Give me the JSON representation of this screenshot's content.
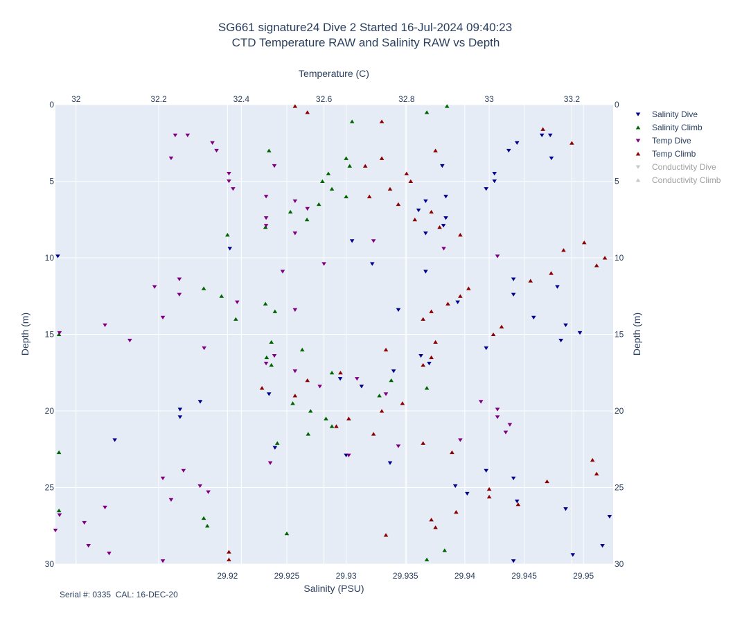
{
  "chart_data": {
    "type": "scatter",
    "title": "SG661 signature24 Dive 2 Started 16-Jul-2024 09:40:23",
    "subtitle": "CTD Temperature RAW and Salinity RAW vs Depth",
    "xlabel_bottom": "Salinity (PSU)",
    "xlabel_top": "Temperature (C)",
    "ylabel": "Depth (m)",
    "x_bottom_range": [
      29.9055,
      29.9525
    ],
    "x_bottom_ticks": [
      "29.92",
      "29.925",
      "29.93",
      "29.935",
      "29.94",
      "29.945",
      "29.95"
    ],
    "x_top_range": [
      31.95,
      33.3
    ],
    "x_top_ticks": [
      "32",
      "32.2",
      "32.4",
      "32.6",
      "32.8",
      "33",
      "33.2"
    ],
    "y_range": [
      0,
      30
    ],
    "y_reversed": true,
    "y_ticks": [
      "0",
      "5",
      "10",
      "15",
      "20",
      "25",
      "30"
    ],
    "grid": true,
    "legend_position": "right",
    "footer": "Serial #: 0335  CAL: 16-DEC-20",
    "series": [
      {
        "name": "Salinity Dive",
        "axis": "salinity",
        "marker": "triangle-down",
        "color": "#00008b",
        "visible": true,
        "points": [
          [
            29.9472,
            2.0
          ],
          [
            29.9465,
            2.0
          ],
          [
            29.9444,
            2.5
          ],
          [
            29.9437,
            3.0
          ],
          [
            29.9473,
            3.5
          ],
          [
            29.9381,
            4.0
          ],
          [
            29.9425,
            4.5
          ],
          [
            29.9425,
            5.0
          ],
          [
            29.9418,
            5.5
          ],
          [
            29.9384,
            6.0
          ],
          [
            29.9367,
            6.3
          ],
          [
            29.9361,
            6.9
          ],
          [
            29.9384,
            7.4
          ],
          [
            29.9382,
            7.9
          ],
          [
            29.9367,
            8.4
          ],
          [
            29.9057,
            9.9
          ],
          [
            29.9202,
            9.4
          ],
          [
            29.9305,
            8.9
          ],
          [
            29.9322,
            10.4
          ],
          [
            29.9367,
            10.9
          ],
          [
            29.9441,
            11.4
          ],
          [
            29.9478,
            11.9
          ],
          [
            29.9441,
            12.4
          ],
          [
            29.9394,
            12.9
          ],
          [
            29.9344,
            13.4
          ],
          [
            29.9458,
            13.9
          ],
          [
            29.9485,
            14.4
          ],
          [
            29.9497,
            14.9
          ],
          [
            29.9481,
            15.4
          ],
          [
            29.9418,
            15.9
          ],
          [
            29.9363,
            16.4
          ],
          [
            29.937,
            16.9
          ],
          [
            29.934,
            17.4
          ],
          [
            29.9295,
            17.9
          ],
          [
            29.9313,
            18.4
          ],
          [
            29.9235,
            18.9
          ],
          [
            29.9177,
            19.4
          ],
          [
            29.916,
            19.9
          ],
          [
            29.916,
            20.4
          ],
          [
            29.9105,
            21.9
          ],
          [
            29.924,
            22.4
          ],
          [
            29.93,
            22.9
          ],
          [
            29.9337,
            23.4
          ],
          [
            29.9418,
            23.9
          ],
          [
            29.9441,
            24.4
          ],
          [
            29.9392,
            24.9
          ],
          [
            29.9402,
            25.4
          ],
          [
            29.9444,
            25.9
          ],
          [
            29.9485,
            26.4
          ],
          [
            29.9522,
            26.9
          ],
          [
            29.9491,
            29.4
          ],
          [
            29.9516,
            28.8
          ],
          [
            29.9441,
            29.8
          ]
        ]
      },
      {
        "name": "Salinity Climb",
        "axis": "salinity",
        "marker": "triangle-up",
        "color": "#006400",
        "visible": true,
        "points": [
          [
            29.9368,
            0.5
          ],
          [
            29.9385,
            0.1
          ],
          [
            29.9305,
            1.1
          ],
          [
            29.9235,
            3.0
          ],
          [
            29.93,
            3.5
          ],
          [
            29.9303,
            4.0
          ],
          [
            29.9285,
            4.5
          ],
          [
            29.928,
            5.0
          ],
          [
            29.9288,
            5.5
          ],
          [
            29.93,
            6.0
          ],
          [
            29.9277,
            6.5
          ],
          [
            29.9253,
            7.0
          ],
          [
            29.9267,
            7.5
          ],
          [
            29.9232,
            8.0
          ],
          [
            29.92,
            8.5
          ],
          [
            29.918,
            12.0
          ],
          [
            29.9195,
            12.5
          ],
          [
            29.9232,
            13.0
          ],
          [
            29.924,
            13.5
          ],
          [
            29.9207,
            14.0
          ],
          [
            29.9058,
            15.0
          ],
          [
            29.9237,
            15.5
          ],
          [
            29.9263,
            16.0
          ],
          [
            29.9233,
            16.5
          ],
          [
            29.9237,
            17.0
          ],
          [
            29.9288,
            17.5
          ],
          [
            29.9338,
            18.0
          ],
          [
            29.9368,
            18.5
          ],
          [
            29.9328,
            19.0
          ],
          [
            29.9255,
            19.5
          ],
          [
            29.927,
            20.0
          ],
          [
            29.9283,
            20.5
          ],
          [
            29.9288,
            21.0
          ],
          [
            29.9268,
            21.5
          ],
          [
            29.9242,
            22.1
          ],
          [
            29.9058,
            22.7
          ],
          [
            29.9058,
            26.5
          ],
          [
            29.918,
            27.0
          ],
          [
            29.9183,
            27.5
          ],
          [
            29.925,
            28.0
          ],
          [
            29.9383,
            29.1
          ],
          [
            29.9368,
            29.7
          ]
        ]
      },
      {
        "name": "Temp Dive",
        "axis": "temperature",
        "marker": "triangle-down",
        "color": "#800080",
        "visible": true,
        "points": [
          [
            32.24,
            2.0
          ],
          [
            32.27,
            2.0
          ],
          [
            32.33,
            2.5
          ],
          [
            32.34,
            3.0
          ],
          [
            32.23,
            3.5
          ],
          [
            32.48,
            4.0
          ],
          [
            32.37,
            4.5
          ],
          [
            32.37,
            5.0
          ],
          [
            32.38,
            5.5
          ],
          [
            32.46,
            6.0
          ],
          [
            32.53,
            6.3
          ],
          [
            32.56,
            6.8
          ],
          [
            32.46,
            7.4
          ],
          [
            32.46,
            7.9
          ],
          [
            32.53,
            8.4
          ],
          [
            32.72,
            8.9
          ],
          [
            32.89,
            9.4
          ],
          [
            33.02,
            9.9
          ],
          [
            32.6,
            10.4
          ],
          [
            32.5,
            10.9
          ],
          [
            32.25,
            11.4
          ],
          [
            32.19,
            11.9
          ],
          [
            32.25,
            12.4
          ],
          [
            32.39,
            12.9
          ],
          [
            32.53,
            13.4
          ],
          [
            32.21,
            13.9
          ],
          [
            32.07,
            14.4
          ],
          [
            31.96,
            14.9
          ],
          [
            32.13,
            15.4
          ],
          [
            32.31,
            15.9
          ],
          [
            32.48,
            16.4
          ],
          [
            32.46,
            16.9
          ],
          [
            32.53,
            17.4
          ],
          [
            32.68,
            17.9
          ],
          [
            32.59,
            18.4
          ],
          [
            32.75,
            18.9
          ],
          [
            32.98,
            19.4
          ],
          [
            33.02,
            19.9
          ],
          [
            33.02,
            20.4
          ],
          [
            33.05,
            20.9
          ],
          [
            33.04,
            21.4
          ],
          [
            32.93,
            21.9
          ],
          [
            32.78,
            22.3
          ],
          [
            32.66,
            22.9
          ],
          [
            32.47,
            23.4
          ],
          [
            32.26,
            23.9
          ],
          [
            32.21,
            24.4
          ],
          [
            32.3,
            24.9
          ],
          [
            32.32,
            25.3
          ],
          [
            32.23,
            25.8
          ],
          [
            32.07,
            26.3
          ],
          [
            31.96,
            26.8
          ],
          [
            32.02,
            27.3
          ],
          [
            31.95,
            27.8
          ],
          [
            32.03,
            28.8
          ],
          [
            32.08,
            29.3
          ],
          [
            32.21,
            29.8
          ]
        ]
      },
      {
        "name": "Temp Climb",
        "axis": "temperature",
        "marker": "triangle-up",
        "color": "#8b0000",
        "visible": true,
        "points": [
          [
            32.53,
            0.1
          ],
          [
            32.56,
            0.5
          ],
          [
            32.74,
            1.1
          ],
          [
            33.13,
            1.6
          ],
          [
            33.2,
            2.5
          ],
          [
            32.87,
            3.0
          ],
          [
            32.74,
            3.5
          ],
          [
            32.7,
            4.0
          ],
          [
            32.8,
            4.5
          ],
          [
            32.81,
            5.0
          ],
          [
            32.76,
            5.5
          ],
          [
            32.71,
            6.0
          ],
          [
            32.78,
            6.5
          ],
          [
            32.86,
            7.0
          ],
          [
            32.82,
            7.5
          ],
          [
            32.88,
            8.0
          ],
          [
            32.93,
            8.5
          ],
          [
            33.18,
            9.5
          ],
          [
            33.23,
            9.0
          ],
          [
            33.28,
            10.0
          ],
          [
            33.26,
            10.5
          ],
          [
            33.15,
            11.0
          ],
          [
            33.1,
            11.5
          ],
          [
            32.95,
            12.0
          ],
          [
            32.93,
            12.5
          ],
          [
            32.9,
            13.0
          ],
          [
            32.86,
            13.5
          ],
          [
            32.84,
            14.0
          ],
          [
            33.03,
            14.5
          ],
          [
            33.01,
            15.0
          ],
          [
            32.87,
            15.5
          ],
          [
            32.75,
            16.0
          ],
          [
            32.86,
            16.5
          ],
          [
            32.84,
            17.0
          ],
          [
            32.64,
            17.5
          ],
          [
            32.56,
            18.0
          ],
          [
            32.45,
            18.5
          ],
          [
            32.53,
            19.0
          ],
          [
            32.79,
            19.5
          ],
          [
            32.74,
            20.0
          ],
          [
            32.66,
            20.5
          ],
          [
            32.63,
            21.0
          ],
          [
            32.72,
            21.5
          ],
          [
            32.84,
            22.1
          ],
          [
            32.91,
            22.7
          ],
          [
            33.25,
            23.2
          ],
          [
            33.26,
            24.1
          ],
          [
            33.14,
            24.6
          ],
          [
            33.0,
            25.1
          ],
          [
            33.0,
            25.6
          ],
          [
            33.07,
            26.1
          ],
          [
            32.92,
            26.6
          ],
          [
            32.86,
            27.1
          ],
          [
            32.87,
            27.6
          ],
          [
            32.75,
            28.1
          ],
          [
            32.37,
            29.2
          ],
          [
            32.37,
            29.7
          ]
        ]
      },
      {
        "name": "Conductivity Dive",
        "axis": "none",
        "marker": "triangle-down",
        "color": "#c8c8c8",
        "visible": false,
        "points": []
      },
      {
        "name": "Conductivity Climb",
        "axis": "none",
        "marker": "triangle-up",
        "color": "#c8c8c8",
        "visible": false,
        "points": []
      }
    ]
  }
}
